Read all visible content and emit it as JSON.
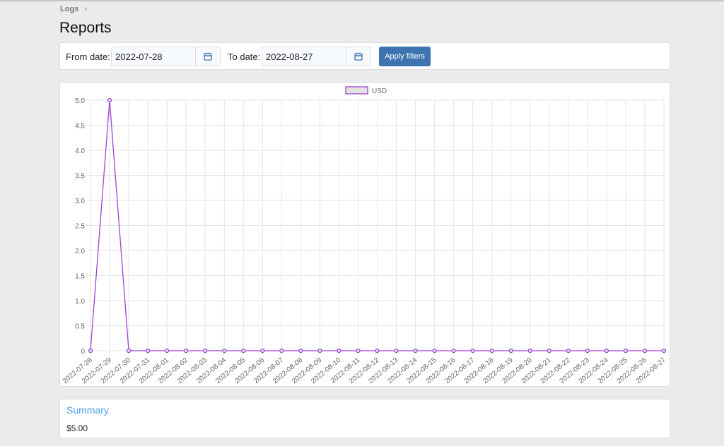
{
  "breadcrumb": {
    "item": "Logs",
    "separator": "›"
  },
  "page_title": "Reports",
  "filters": {
    "from_label": "From date:",
    "from_value": "2022-07-28",
    "to_label": "To date:",
    "to_value": "2022-08-27",
    "apply_label": "Apply filters"
  },
  "chart_data": {
    "type": "line",
    "legend": {
      "position": "top",
      "entries": [
        "USD"
      ]
    },
    "grid": true,
    "ylim": [
      0,
      5
    ],
    "y_ticks": [
      "0",
      "0.5",
      "1.0",
      "1.5",
      "2.0",
      "2.5",
      "3.0",
      "3.5",
      "4.0",
      "4.5",
      "5.0"
    ],
    "categories": [
      "2022-07-28",
      "2022-07-29",
      "2022-07-30",
      "2022-07-31",
      "2022-08-01",
      "2022-08-02",
      "2022-08-03",
      "2022-08-04",
      "2022-08-05",
      "2022-08-06",
      "2022-08-07",
      "2022-08-08",
      "2022-08-09",
      "2022-08-10",
      "2022-08-11",
      "2022-08-12",
      "2022-08-13",
      "2022-08-14",
      "2022-08-15",
      "2022-08-16",
      "2022-08-17",
      "2022-08-18",
      "2022-08-19",
      "2022-08-20",
      "2022-08-21",
      "2022-08-22",
      "2022-08-23",
      "2022-08-24",
      "2022-08-25",
      "2022-08-26",
      "2022-08-27"
    ],
    "series": [
      {
        "name": "USD",
        "color": "#9b44d6",
        "values": [
          0,
          5,
          0,
          0,
          0,
          0,
          0,
          0,
          0,
          0,
          0,
          0,
          0,
          0,
          0,
          0,
          0,
          0,
          0,
          0,
          0,
          0,
          0,
          0,
          0,
          0,
          0,
          0,
          0,
          0,
          0
        ]
      }
    ]
  },
  "summary": {
    "title": "Summary",
    "value": "$5.00"
  }
}
